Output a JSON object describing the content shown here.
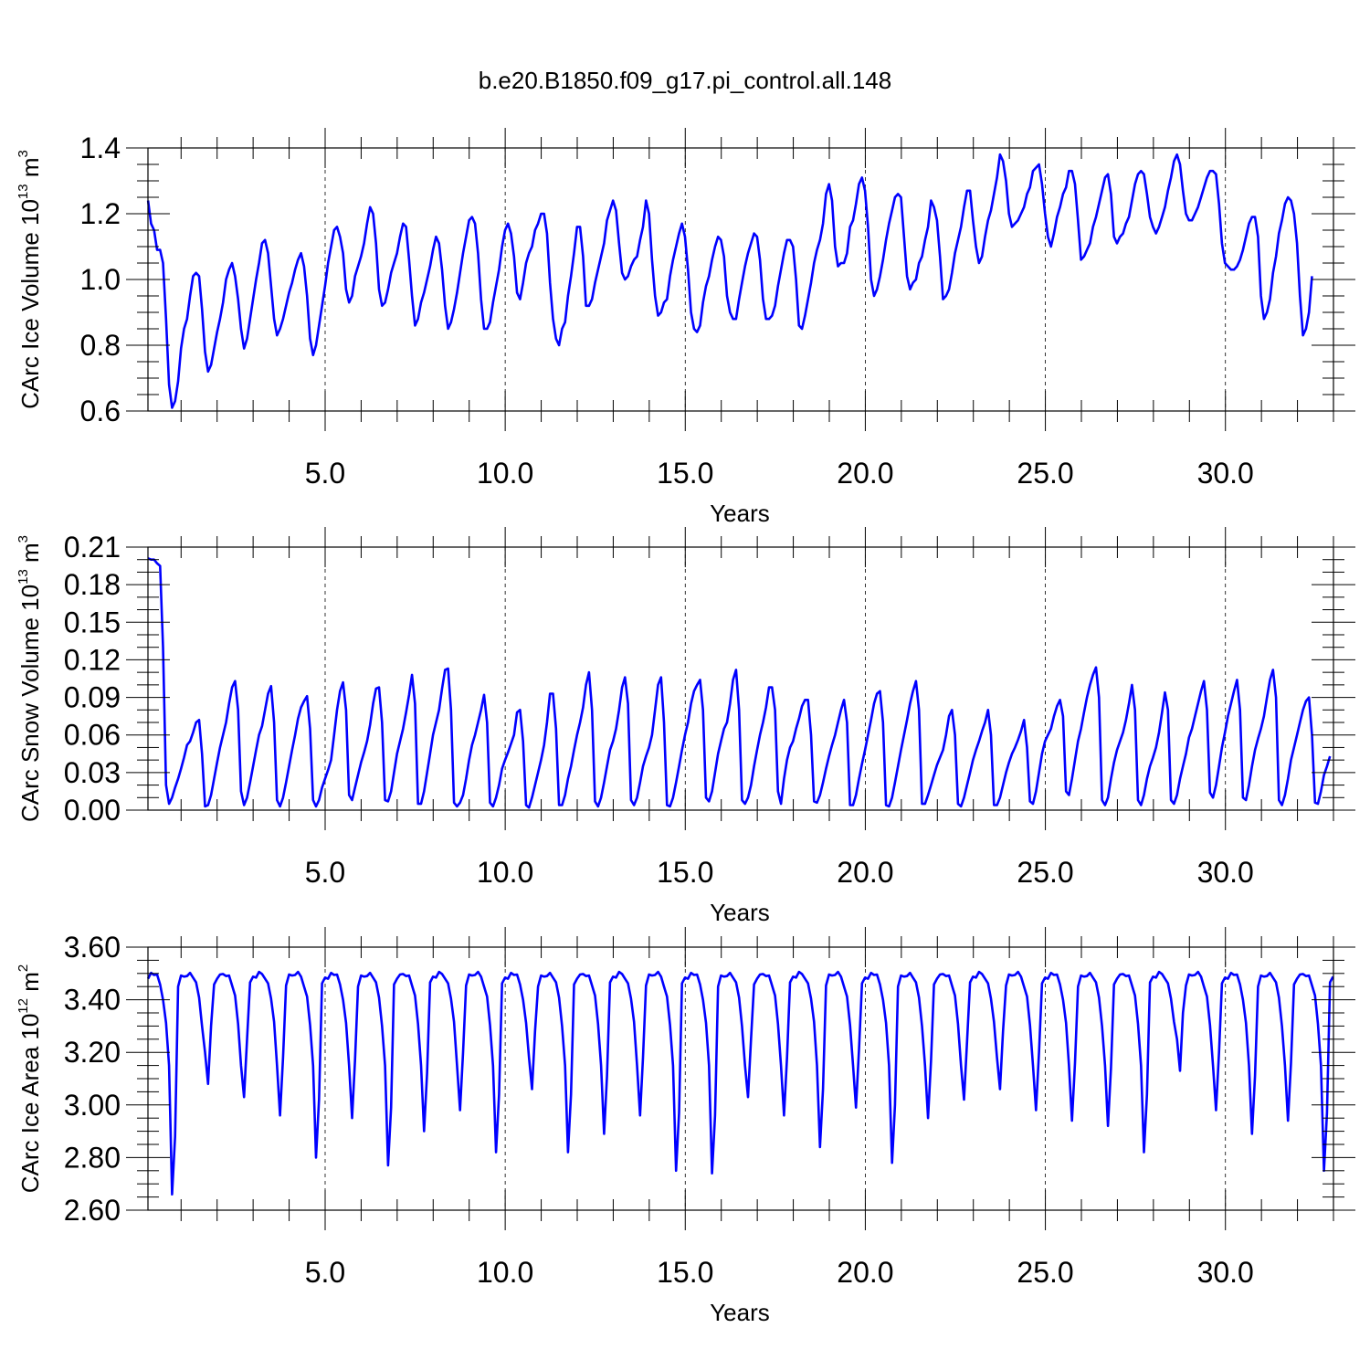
{
  "title": "b.e20.B1850.f09_g17.pi_control.all.148",
  "colors": {
    "line": "#0000ff",
    "axis": "#000000"
  },
  "chart_data": [
    {
      "type": "line",
      "ylabel": {
        "base": "CArc Ice Volume 10",
        "exp": "13",
        "unit": " m",
        "unit_exp": "3"
      },
      "xlabel": "Years",
      "xlim": [
        0.08,
        33.0
      ],
      "ylim": [
        0.6,
        1.4
      ],
      "xticks": [
        5,
        10,
        15,
        20,
        25,
        30
      ],
      "xtick_labels": [
        "5.0",
        "10.0",
        "15.0",
        "20.0",
        "25.0",
        "30.0"
      ],
      "yticks": [
        0.6,
        0.8,
        1.0,
        1.2,
        1.4
      ],
      "ytick_labels": [
        "0.6",
        "0.8",
        "1.0",
        "1.2",
        "1.4"
      ],
      "yminor": 0.05,
      "vgrid": "dashed at major x ticks",
      "series": [
        {
          "x_start": 0.083,
          "x_step": 0.0833,
          "values": [
            1.24,
            1.17,
            1.15,
            1.09,
            1.09,
            1.05,
            0.88,
            0.68,
            0.61,
            0.63,
            0.69,
            0.79,
            0.85,
            0.88,
            0.95,
            1.01,
            1.02,
            1.01,
            0.91,
            0.78,
            0.72,
            0.74,
            0.79,
            0.84,
            0.88,
            0.93,
            1.0,
            1.03,
            1.05,
            1.01,
            0.94,
            0.85,
            0.79,
            0.82,
            0.88,
            0.94,
            1.0,
            1.05,
            1.11,
            1.12,
            1.08,
            0.98,
            0.88,
            0.83,
            0.85,
            0.88,
            0.92,
            0.96,
            0.99,
            1.03,
            1.06,
            1.08,
            1.04,
            0.95,
            0.82,
            0.77,
            0.8,
            0.86,
            0.92,
            0.98,
            1.05,
            1.1,
            1.15,
            1.16,
            1.13,
            1.08,
            0.97,
            0.93,
            0.95,
            1.01,
            1.04,
            1.07,
            1.11,
            1.17,
            1.22,
            1.2,
            1.11,
            0.97,
            0.92,
            0.93,
            0.97,
            1.02,
            1.05,
            1.08,
            1.13,
            1.17,
            1.16,
            1.06,
            0.95,
            0.86,
            0.88,
            0.93,
            0.96,
            1.0,
            1.04,
            1.09,
            1.13,
            1.11,
            1.03,
            0.92,
            0.85,
            0.87,
            0.91,
            0.96,
            1.02,
            1.08,
            1.13,
            1.18,
            1.19,
            1.17,
            1.08,
            0.94,
            0.85,
            0.85,
            0.87,
            0.93,
            0.98,
            1.03,
            1.1,
            1.15,
            1.17,
            1.14,
            1.07,
            0.96,
            0.94,
            0.99,
            1.05,
            1.08,
            1.1,
            1.15,
            1.17,
            1.2,
            1.2,
            1.14,
            0.99,
            0.88,
            0.82,
            0.8,
            0.85,
            0.87,
            0.95,
            1.01,
            1.08,
            1.16,
            1.16,
            1.07,
            0.92,
            0.92,
            0.94,
            0.99,
            1.03,
            1.07,
            1.11,
            1.18,
            1.21,
            1.24,
            1.21,
            1.11,
            1.02,
            1.0,
            1.01,
            1.04,
            1.06,
            1.07,
            1.12,
            1.16,
            1.24,
            1.2,
            1.06,
            0.95,
            0.89,
            0.9,
            0.93,
            0.94,
            1.01,
            1.06,
            1.1,
            1.14,
            1.17,
            1.13,
            1.03,
            0.9,
            0.85,
            0.84,
            0.86,
            0.93,
            0.98,
            1.01,
            1.06,
            1.1,
            1.13,
            1.12,
            1.07,
            0.95,
            0.9,
            0.88,
            0.88,
            0.94,
            0.99,
            1.04,
            1.08,
            1.11,
            1.14,
            1.13,
            1.06,
            0.94,
            0.88,
            0.88,
            0.89,
            0.92,
            0.98,
            1.03,
            1.08,
            1.12,
            1.12,
            1.1,
            1.0,
            0.86,
            0.85,
            0.89,
            0.94,
            0.99,
            1.05,
            1.09,
            1.12,
            1.17,
            1.26,
            1.29,
            1.24,
            1.1,
            1.04,
            1.05,
            1.05,
            1.08,
            1.16,
            1.18,
            1.23,
            1.29,
            1.31,
            1.27,
            1.16,
            1.0,
            0.95,
            0.97,
            1.01,
            1.06,
            1.12,
            1.17,
            1.21,
            1.25,
            1.26,
            1.25,
            1.13,
            1.01,
            0.97,
            0.99,
            1.0,
            1.05,
            1.07,
            1.12,
            1.16,
            1.24,
            1.22,
            1.18,
            1.07,
            0.94,
            0.95,
            0.97,
            1.02,
            1.08,
            1.12,
            1.16,
            1.22,
            1.27,
            1.27,
            1.18,
            1.1,
            1.05,
            1.07,
            1.13,
            1.18,
            1.21,
            1.26,
            1.31,
            1.38,
            1.36,
            1.3,
            1.2,
            1.16,
            1.17,
            1.18,
            1.2,
            1.22,
            1.26,
            1.28,
            1.33,
            1.34,
            1.35,
            1.29,
            1.2,
            1.13,
            1.1,
            1.14,
            1.19,
            1.22,
            1.26,
            1.28,
            1.33,
            1.33,
            1.29,
            1.18,
            1.06,
            1.07,
            1.09,
            1.11,
            1.16,
            1.19,
            1.23,
            1.27,
            1.31,
            1.32,
            1.26,
            1.13,
            1.11,
            1.13,
            1.14,
            1.17,
            1.19,
            1.24,
            1.29,
            1.32,
            1.33,
            1.32,
            1.26,
            1.19,
            1.16,
            1.14,
            1.16,
            1.19,
            1.22,
            1.27,
            1.31,
            1.36,
            1.38,
            1.35,
            1.27,
            1.2,
            1.18,
            1.18,
            1.2,
            1.22,
            1.25,
            1.28,
            1.31,
            1.33,
            1.33,
            1.32,
            1.23,
            1.11,
            1.05,
            1.04,
            1.03,
            1.03,
            1.04,
            1.06,
            1.09,
            1.13,
            1.17,
            1.19,
            1.19,
            1.13,
            0.95,
            0.88,
            0.9,
            0.94,
            1.02,
            1.07,
            1.14,
            1.18,
            1.23,
            1.25,
            1.24,
            1.2,
            1.11,
            0.95,
            0.83,
            0.85,
            0.9,
            1.01
          ]
        }
      ]
    },
    {
      "type": "line",
      "ylabel": {
        "base": "CArc Snow Volume 10",
        "exp": "13",
        "unit": " m",
        "unit_exp": "3"
      },
      "xlabel": "Years",
      "xlim": [
        0.08,
        33.0
      ],
      "ylim": [
        0.0,
        0.21
      ],
      "xticks": [
        5,
        10,
        15,
        20,
        25,
        30
      ],
      "xtick_labels": [
        "5.0",
        "10.0",
        "15.0",
        "20.0",
        "25.0",
        "30.0"
      ],
      "yticks": [
        0.0,
        0.03,
        0.06,
        0.09,
        0.12,
        0.15,
        0.18,
        0.21
      ],
      "ytick_labels": [
        "0.00",
        "0.03",
        "0.06",
        "0.09",
        "0.12",
        "0.15",
        "0.18",
        "0.21"
      ],
      "yminor": 0.01,
      "vgrid": "dashed at major x ticks",
      "series": [
        {
          "x_start": 0.083,
          "x_step": 0.0833,
          "values": [
            0.201,
            0.2,
            0.2,
            0.197,
            0.195,
            0.13,
            0.02,
            0.005,
            0.01,
            0.018,
            0.025,
            0.033,
            0.042,
            0.052,
            0.055,
            0.062,
            0.07,
            0.072,
            0.045,
            0.003,
            0.004,
            0.012,
            0.025,
            0.038,
            0.05,
            0.06,
            0.07,
            0.085,
            0.098,
            0.103,
            0.08,
            0.015,
            0.004,
            0.01,
            0.022,
            0.035,
            0.048,
            0.06,
            0.067,
            0.08,
            0.093,
            0.099,
            0.07,
            0.008,
            0.003,
            0.01,
            0.022,
            0.035,
            0.048,
            0.06,
            0.073,
            0.082,
            0.087,
            0.091,
            0.065,
            0.008,
            0.003,
            0.008,
            0.018,
            0.025,
            0.032,
            0.04,
            0.06,
            0.08,
            0.095,
            0.102,
            0.08,
            0.012,
            0.008,
            0.018,
            0.028,
            0.038,
            0.046,
            0.055,
            0.068,
            0.085,
            0.097,
            0.098,
            0.07,
            0.008,
            0.007,
            0.015,
            0.03,
            0.045,
            0.055,
            0.065,
            0.078,
            0.092,
            0.108,
            0.085,
            0.005,
            0.005,
            0.015,
            0.03,
            0.045,
            0.06,
            0.07,
            0.08,
            0.097,
            0.112,
            0.113,
            0.08,
            0.006,
            0.003,
            0.006,
            0.012,
            0.025,
            0.04,
            0.052,
            0.06,
            0.07,
            0.08,
            0.092,
            0.07,
            0.006,
            0.003,
            0.01,
            0.02,
            0.033,
            0.04,
            0.046,
            0.053,
            0.06,
            0.078,
            0.08,
            0.055,
            0.004,
            0.002,
            0.01,
            0.02,
            0.03,
            0.04,
            0.052,
            0.07,
            0.093,
            0.093,
            0.065,
            0.004,
            0.004,
            0.012,
            0.025,
            0.035,
            0.048,
            0.06,
            0.07,
            0.082,
            0.1,
            0.11,
            0.08,
            0.007,
            0.003,
            0.01,
            0.022,
            0.035,
            0.048,
            0.055,
            0.065,
            0.08,
            0.098,
            0.106,
            0.085,
            0.008,
            0.004,
            0.01,
            0.022,
            0.035,
            0.043,
            0.05,
            0.06,
            0.08,
            0.1,
            0.106,
            0.07,
            0.004,
            0.003,
            0.01,
            0.022,
            0.035,
            0.048,
            0.06,
            0.07,
            0.085,
            0.095,
            0.1,
            0.104,
            0.08,
            0.01,
            0.007,
            0.015,
            0.03,
            0.045,
            0.055,
            0.065,
            0.07,
            0.085,
            0.104,
            0.112,
            0.08,
            0.008,
            0.005,
            0.01,
            0.02,
            0.035,
            0.048,
            0.06,
            0.07,
            0.082,
            0.098,
            0.098,
            0.08,
            0.015,
            0.005,
            0.025,
            0.04,
            0.05,
            0.055,
            0.065,
            0.073,
            0.083,
            0.088,
            0.088,
            0.06,
            0.007,
            0.006,
            0.012,
            0.022,
            0.033,
            0.043,
            0.052,
            0.06,
            0.07,
            0.08,
            0.088,
            0.07,
            0.004,
            0.004,
            0.012,
            0.025,
            0.037,
            0.048,
            0.06,
            0.072,
            0.085,
            0.093,
            0.095,
            0.07,
            0.004,
            0.003,
            0.01,
            0.022,
            0.035,
            0.048,
            0.06,
            0.072,
            0.085,
            0.095,
            0.103,
            0.08,
            0.005,
            0.005,
            0.012,
            0.02,
            0.028,
            0.036,
            0.042,
            0.048,
            0.06,
            0.075,
            0.08,
            0.06,
            0.005,
            0.003,
            0.01,
            0.02,
            0.03,
            0.04,
            0.048,
            0.055,
            0.063,
            0.07,
            0.08,
            0.06,
            0.004,
            0.004,
            0.01,
            0.02,
            0.03,
            0.038,
            0.045,
            0.05,
            0.056,
            0.063,
            0.072,
            0.05,
            0.007,
            0.005,
            0.015,
            0.03,
            0.045,
            0.055,
            0.06,
            0.065,
            0.075,
            0.083,
            0.088,
            0.075,
            0.015,
            0.012,
            0.025,
            0.04,
            0.055,
            0.065,
            0.078,
            0.09,
            0.1,
            0.108,
            0.114,
            0.09,
            0.008,
            0.004,
            0.01,
            0.025,
            0.038,
            0.048,
            0.055,
            0.062,
            0.072,
            0.085,
            0.1,
            0.08,
            0.008,
            0.004,
            0.012,
            0.025,
            0.035,
            0.042,
            0.05,
            0.062,
            0.078,
            0.094,
            0.08,
            0.008,
            0.005,
            0.012,
            0.025,
            0.035,
            0.045,
            0.058,
            0.065,
            0.075,
            0.085,
            0.095,
            0.103,
            0.08,
            0.014,
            0.01,
            0.02,
            0.035,
            0.05,
            0.062,
            0.075,
            0.085,
            0.095,
            0.104,
            0.08,
            0.01,
            0.008,
            0.02,
            0.035,
            0.048,
            0.057,
            0.065,
            0.075,
            0.09,
            0.104,
            0.112,
            0.09,
            0.008,
            0.004,
            0.012,
            0.025,
            0.04,
            0.05,
            0.06,
            0.07,
            0.08,
            0.087,
            0.09,
            0.06,
            0.006,
            0.005,
            0.015,
            0.028,
            0.035,
            0.043
          ]
        }
      ]
    },
    {
      "type": "line",
      "ylabel": {
        "base": "CArc Ice Area 10",
        "exp": "12",
        "unit": " m",
        "unit_exp": "2"
      },
      "xlabel": "Years",
      "xlim": [
        0.08,
        33.0
      ],
      "ylim": [
        2.6,
        3.6
      ],
      "xticks": [
        5,
        10,
        15,
        20,
        25,
        30
      ],
      "xtick_labels": [
        "5.0",
        "10.0",
        "15.0",
        "20.0",
        "25.0",
        "30.0"
      ],
      "yticks": [
        2.6,
        2.8,
        3.0,
        3.2,
        3.4,
        3.6
      ],
      "ytick_labels": [
        "2.60",
        "2.80",
        "3.00",
        "3.20",
        "3.40",
        "3.60"
      ],
      "yminor": 0.05,
      "vgrid": "dashed at major x ticks",
      "series": [
        {
          "x_start": 0.083,
          "x_step": 0.0833,
          "troughs": [
            2.66,
            3.08,
            3.03,
            2.96,
            2.8,
            2.95,
            2.77,
            2.9,
            2.98,
            2.82,
            3.06,
            2.82,
            2.89,
            2.96,
            2.75,
            2.74,
            3.03,
            2.96,
            2.84,
            2.99,
            2.78,
            2.95,
            3.02,
            3.06,
            2.98,
            2.94,
            2.92,
            2.82,
            3.13,
            2.98,
            2.89,
            2.94,
            2.75
          ]
        }
      ]
    }
  ]
}
